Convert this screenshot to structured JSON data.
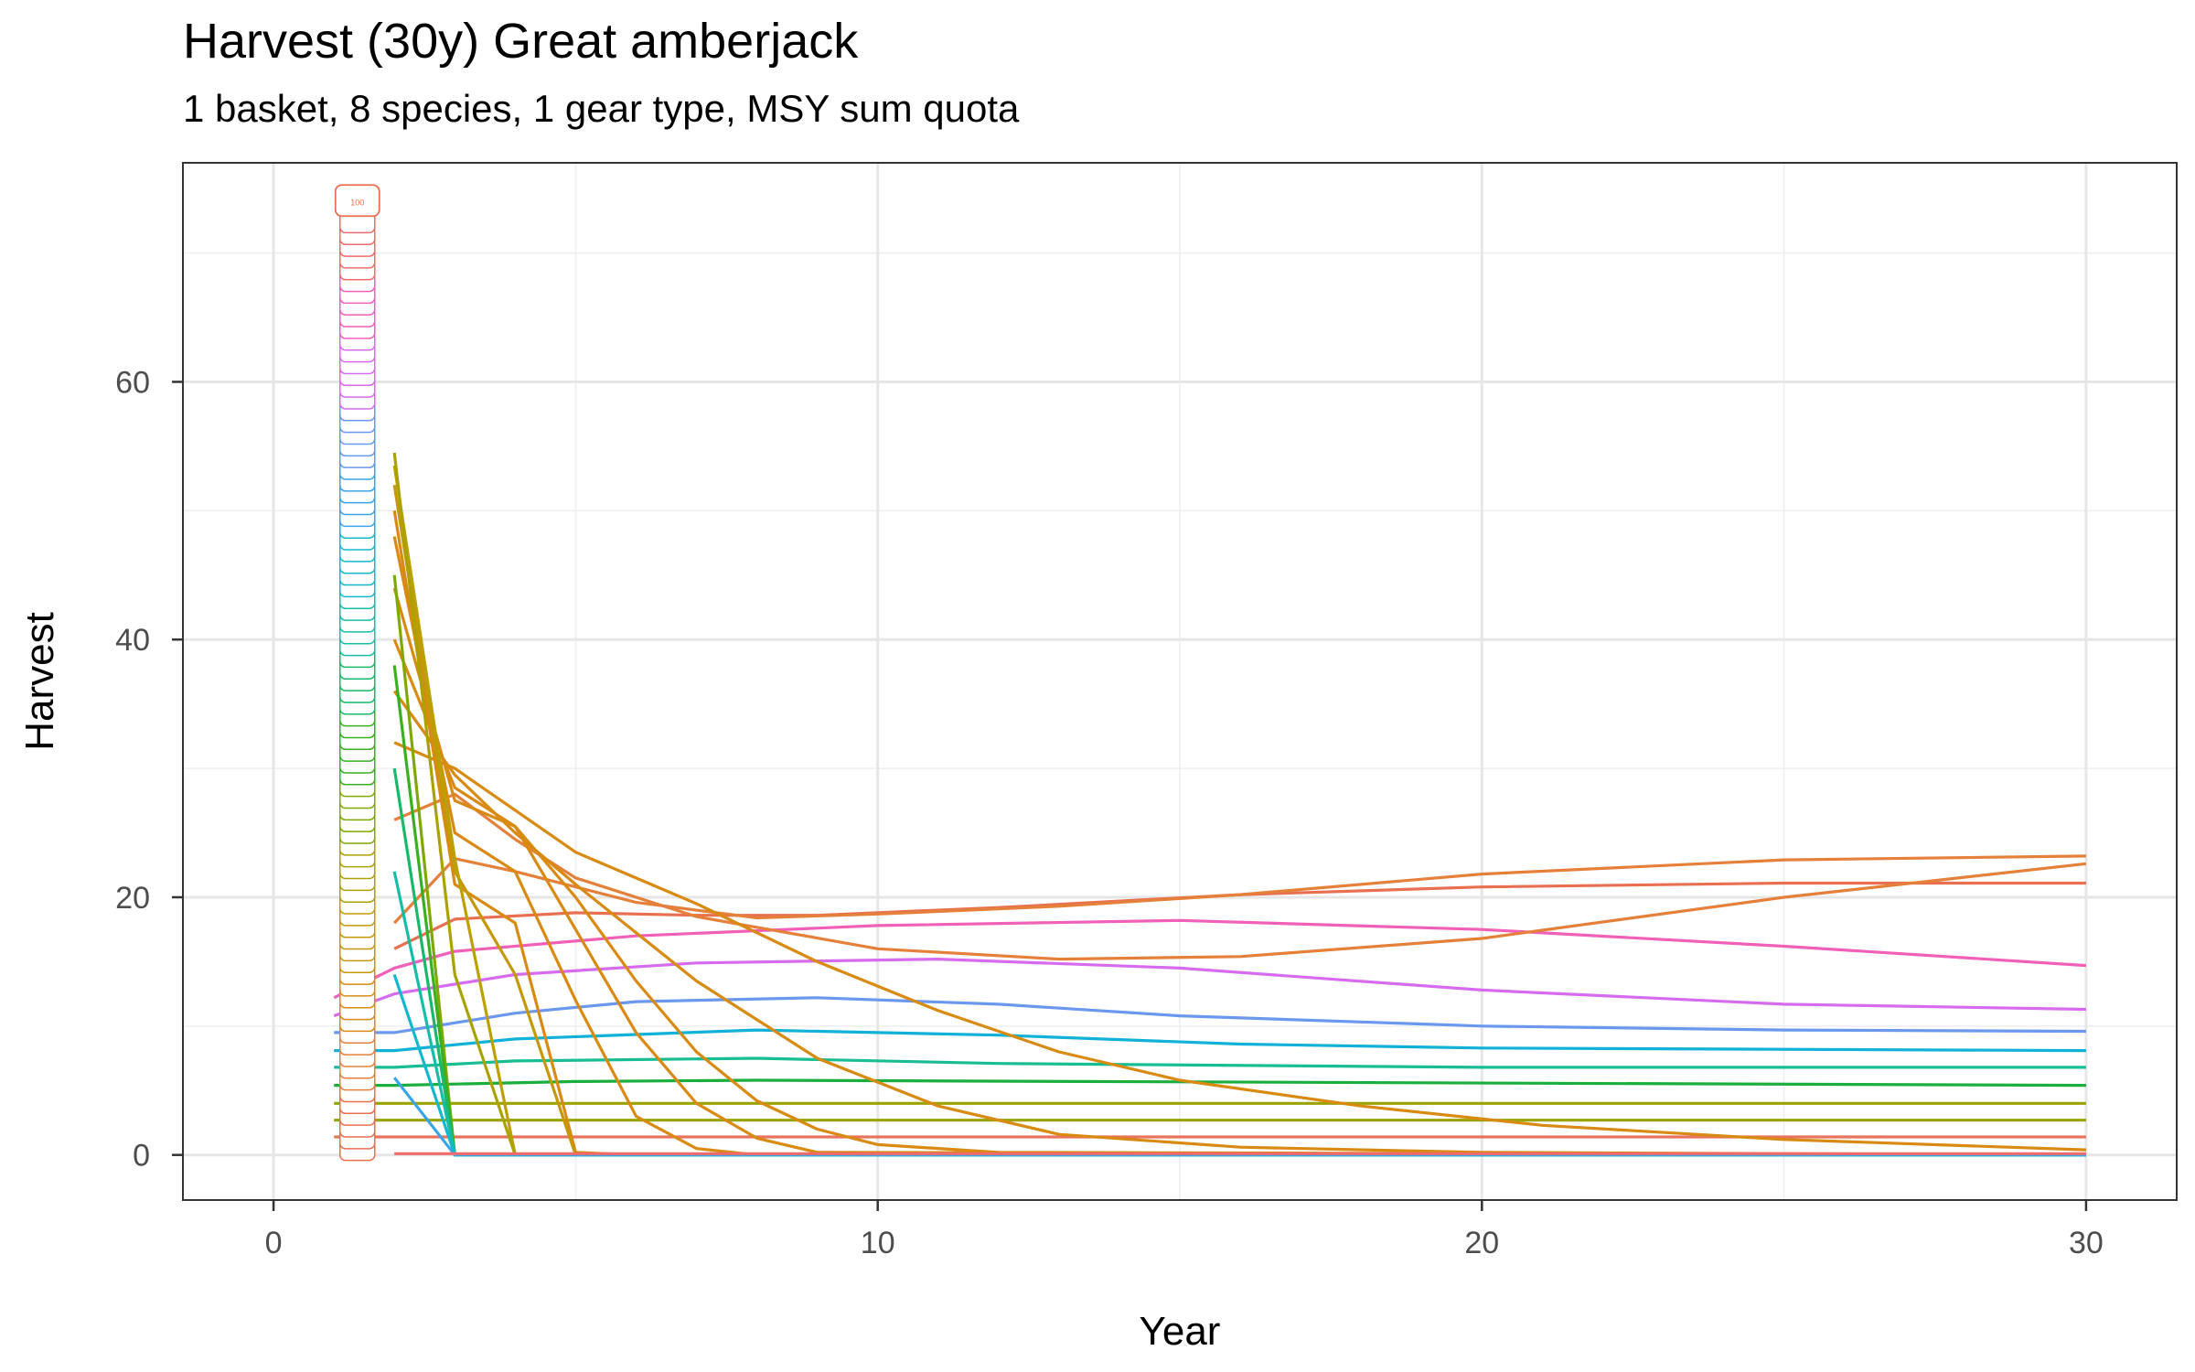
{
  "chart_data": {
    "type": "line",
    "title": "Harvest (30y) Great amberjack",
    "subtitle": "1 basket, 8 species, 1 gear type, MSY sum quota",
    "xlabel": "Year",
    "ylabel": "Harvest",
    "xlim": [
      -1.5,
      31.5
    ],
    "ylim": [
      -3.5,
      77
    ],
    "x_ticks": [
      0,
      10,
      20,
      30
    ],
    "y_ticks": [
      0,
      20,
      40,
      60
    ],
    "grid": true,
    "legend": "none",
    "line_label_texts": [
      "100"
    ],
    "series": [
      {
        "color": "#e8735f",
        "x": [
          1,
          2,
          30
        ],
        "y": [
          1.4,
          1.4,
          1.4
        ]
      },
      {
        "color": "#9aa300",
        "x": [
          1,
          2,
          30
        ],
        "y": [
          2.7,
          2.7,
          2.7
        ]
      },
      {
        "color": "#9aa300",
        "x": [
          1,
          2,
          30
        ],
        "y": [
          4.0,
          4.0,
          4.0
        ]
      },
      {
        "color": "#1aae3c",
        "x": [
          1,
          2,
          5,
          8,
          30
        ],
        "y": [
          5.4,
          5.4,
          5.7,
          5.8,
          5.4
        ]
      },
      {
        "color": "#19bd93",
        "x": [
          1,
          2,
          4,
          8,
          12,
          20,
          30
        ],
        "y": [
          6.8,
          6.8,
          7.3,
          7.5,
          7.1,
          6.8,
          6.8
        ]
      },
      {
        "color": "#11b1d8",
        "x": [
          1,
          2,
          4,
          8,
          12,
          16,
          20,
          30
        ],
        "y": [
          8.1,
          8.1,
          9.0,
          9.7,
          9.3,
          8.6,
          8.3,
          8.1
        ]
      },
      {
        "color": "#6a98ed",
        "x": [
          1,
          2,
          4,
          6,
          9,
          12,
          15,
          20,
          25,
          30
        ],
        "y": [
          9.5,
          9.5,
          11.0,
          11.9,
          12.2,
          11.7,
          10.8,
          10.0,
          9.7,
          9.6
        ]
      },
      {
        "color": "#d66ced",
        "x": [
          1,
          2,
          4,
          7,
          11,
          15,
          20,
          25,
          30
        ],
        "y": [
          10.8,
          12.5,
          14.0,
          14.9,
          15.2,
          14.5,
          12.8,
          11.7,
          11.3
        ]
      },
      {
        "color": "#f060b8",
        "x": [
          1,
          2,
          3,
          6,
          10,
          15,
          20,
          25,
          30
        ],
        "y": [
          12.2,
          14.5,
          15.8,
          17.0,
          17.8,
          18.2,
          17.5,
          16.2,
          14.7
        ]
      },
      {
        "color": "#e87050",
        "x": [
          2,
          3,
          5,
          7,
          9,
          12,
          16,
          20,
          25,
          30
        ],
        "y": [
          16.0,
          18.3,
          18.8,
          18.6,
          18.6,
          19.2,
          20.2,
          20.8,
          21.1,
          21.1
        ]
      },
      {
        "color": "#e5803a",
        "x": [
          2,
          3,
          4,
          5,
          6,
          8,
          10,
          13,
          16,
          20,
          25,
          30
        ],
        "y": [
          18.0,
          23.0,
          22.0,
          20.8,
          19.6,
          18.4,
          18.7,
          19.3,
          20.2,
          21.8,
          22.9,
          23.2
        ]
      },
      {
        "color": "#e5803a",
        "x": [
          2,
          3,
          4,
          5,
          7,
          10,
          13,
          16,
          20,
          25,
          30
        ],
        "y": [
          26.0,
          28.0,
          24.5,
          21.5,
          18.5,
          16.0,
          15.2,
          15.4,
          16.8,
          20.0,
          22.6
        ]
      },
      {
        "color": "#d88a12",
        "x": [
          2,
          3,
          5,
          7,
          9,
          11,
          13,
          15,
          18,
          21,
          25,
          30
        ],
        "y": [
          32.0,
          30.0,
          23.5,
          19.5,
          15.0,
          11.2,
          8.0,
          5.8,
          3.8,
          2.3,
          1.2,
          0.4
        ]
      },
      {
        "color": "#d88a12",
        "x": [
          2,
          3,
          4,
          5,
          7,
          9,
          11,
          13,
          16,
          20,
          30
        ],
        "y": [
          36.0,
          29.5,
          25.0,
          21.0,
          13.5,
          7.5,
          3.8,
          1.6,
          0.6,
          0.2,
          0.0
        ]
      },
      {
        "color": "#d88a12",
        "x": [
          2,
          3,
          4,
          5,
          6,
          7,
          8,
          9,
          10,
          12,
          30
        ],
        "y": [
          40.0,
          28.5,
          25.5,
          20.0,
          13.5,
          8.0,
          4.2,
          2.0,
          0.8,
          0.2,
          0.0
        ]
      },
      {
        "color": "#d88a12",
        "x": [
          2,
          3,
          4,
          5,
          6,
          7,
          8,
          9,
          30
        ],
        "y": [
          44.0,
          27.5,
          25.5,
          17.5,
          9.5,
          4.0,
          1.3,
          0.2,
          0.0
        ]
      },
      {
        "color": "#d88a12",
        "x": [
          2,
          3,
          4,
          5,
          6,
          7,
          8,
          30
        ],
        "y": [
          48.0,
          25.0,
          22.0,
          12.0,
          3.0,
          0.5,
          0.0,
          0.0
        ]
      },
      {
        "color": "#d88a12",
        "x": [
          2,
          3,
          4,
          5,
          6,
          30
        ],
        "y": [
          50.0,
          21.0,
          18.0,
          0.2,
          0.0,
          0.0
        ]
      },
      {
        "color": "#c49808",
        "x": [
          2,
          3,
          4,
          5,
          30
        ],
        "y": [
          52.0,
          22.0,
          14.0,
          0.0,
          0.0
        ]
      },
      {
        "color": "#bba000",
        "x": [
          2,
          3,
          4,
          30
        ],
        "y": [
          53.5,
          23.0,
          0.0,
          0.0
        ]
      },
      {
        "color": "#a9a200",
        "x": [
          2,
          3,
          4,
          30
        ],
        "y": [
          54.5,
          14.0,
          0.0,
          0.0
        ]
      },
      {
        "color": "#7fa800",
        "x": [
          2,
          3,
          30
        ],
        "y": [
          45.0,
          0.0,
          0.0
        ]
      },
      {
        "color": "#39b020",
        "x": [
          2,
          3,
          30
        ],
        "y": [
          38.0,
          0.0,
          0.0
        ]
      },
      {
        "color": "#19b86a",
        "x": [
          2,
          3,
          30
        ],
        "y": [
          30.0,
          0.0,
          0.0
        ]
      },
      {
        "color": "#17bda6",
        "x": [
          2,
          3,
          30
        ],
        "y": [
          22.0,
          0.0,
          0.0
        ]
      },
      {
        "color": "#14b8cc",
        "x": [
          2,
          3,
          30
        ],
        "y": [
          14.0,
          0.0,
          0.0
        ]
      },
      {
        "color": "#3aa4e8",
        "x": [
          2,
          3,
          30
        ],
        "y": [
          6.0,
          0.0,
          0.0
        ]
      },
      {
        "color": "#ef6b6b",
        "x": [
          2,
          30
        ],
        "y": [
          0.1,
          0.1
        ]
      }
    ]
  }
}
